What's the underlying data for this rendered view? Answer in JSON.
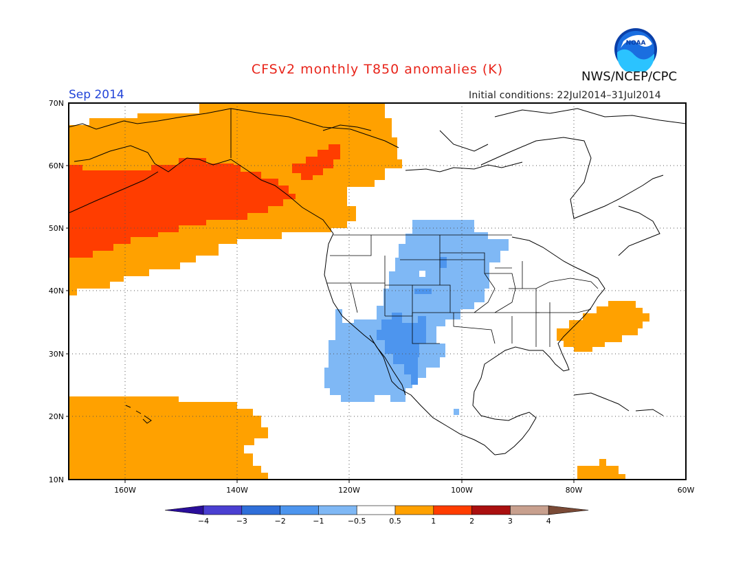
{
  "header": {
    "title": "CFSv2 monthly T850 anomalies (K)",
    "month": "Sep 2014",
    "agency": "NWS/NCEP/CPC",
    "initial_conditions": "Initial conditions: 22Jul2014–31Jul2014",
    "logo_text": "NOAA"
  },
  "axes": {
    "lat_labels": [
      "70N",
      "60N",
      "50N",
      "40N",
      "30N",
      "20N",
      "10N"
    ],
    "lon_labels": [
      "160W",
      "140W",
      "120W",
      "100W",
      "80W",
      "60W"
    ]
  },
  "legend": {
    "labels": [
      "−4",
      "−3",
      "−2",
      "−1",
      "−0.5",
      "0.5",
      "1",
      "2",
      "3",
      "4"
    ],
    "colors": [
      "#2a0e9a",
      "#4a3fd1",
      "#2f6fd9",
      "#4d95ee",
      "#7fb8f5",
      "#ffffff",
      "#ffa100",
      "#ff3d00",
      "#aa0f0f",
      "#c8a08e",
      "#7a4a36"
    ]
  },
  "chart_data": {
    "type": "heatmap",
    "units": "K",
    "variable": "T850 anomalies",
    "lat_range": [
      10,
      70
    ],
    "lon_range": [
      -170,
      -60
    ],
    "regions": [
      {
        "category": "0.5 to 1",
        "area": "NE Pacific / Gulf of Alaska / Bering Sea"
      },
      {
        "category": "1 to 2",
        "area": "North Pacific south of Aleutians"
      },
      {
        "category": "1 to 2",
        "area": "Southern Alaska coast"
      },
      {
        "category": "-1 to -0.5",
        "area": "Western US interior / NW Mexico"
      },
      {
        "category": "-2 to -1",
        "area": "Southwest US / Gulf of California"
      },
      {
        "category": "0.5 to 1",
        "area": "US Southeast coast / W Atlantic"
      },
      {
        "category": "0.5 to 1",
        "area": "Central Pacific around Hawaii"
      },
      {
        "category": "0.5 to 1",
        "area": "Caribbean south of Hispaniola"
      }
    ]
  }
}
